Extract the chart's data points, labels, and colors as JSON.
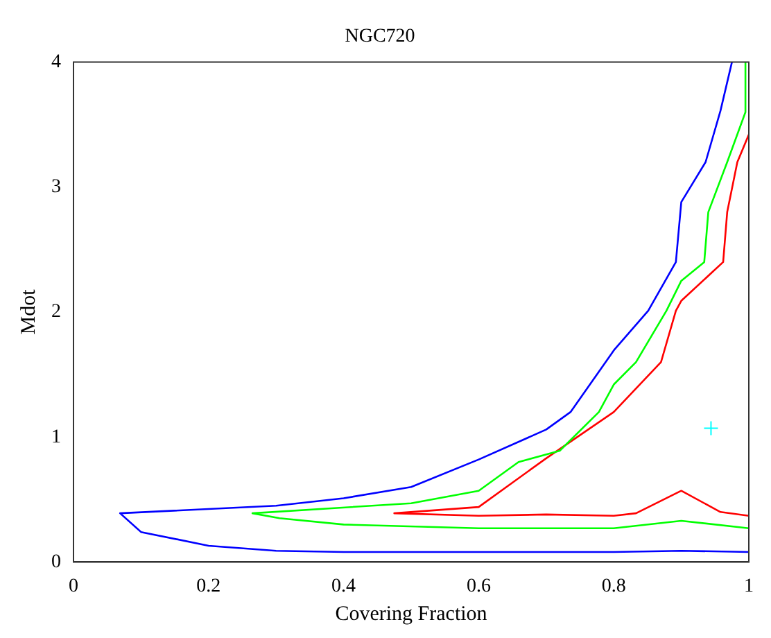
{
  "chart_data": {
    "type": "line",
    "title": "NGC720",
    "xlabel": "Covering Fraction",
    "ylabel": "Mdot",
    "xlim": [
      0,
      1
    ],
    "ylim": [
      0,
      4
    ],
    "xticks": [
      0,
      0.2,
      0.4,
      0.6,
      0.8,
      1
    ],
    "yticks": [
      0,
      1,
      2,
      3,
      4
    ],
    "grid": false,
    "legend": false,
    "series": [
      {
        "color": "#0000ff",
        "x": [
          0.975,
          0.958,
          0.936,
          0.9,
          0.892,
          0.851,
          0.801,
          0.736,
          0.7,
          0.6,
          0.5,
          0.4,
          0.3,
          0.069,
          0.1,
          0.2,
          0.3,
          0.4,
          0.6,
          0.8,
          0.9,
          1.0
        ],
        "values": [
          4.0,
          3.61,
          3.2,
          2.88,
          2.4,
          2.01,
          1.7,
          1.2,
          1.06,
          0.82,
          0.6,
          0.51,
          0.45,
          0.39,
          0.24,
          0.13,
          0.09,
          0.08,
          0.08,
          0.08,
          0.09,
          0.08
        ]
      },
      {
        "color": "#00ff00",
        "x": [
          0.995,
          0.995,
          0.968,
          0.94,
          0.934,
          0.9,
          0.878,
          0.833,
          0.8,
          0.778,
          0.72,
          0.659,
          0.6,
          0.5,
          0.265,
          0.305,
          0.4,
          0.6,
          0.8,
          0.9,
          1.0
        ],
        "values": [
          4.0,
          3.6,
          3.2,
          2.8,
          2.4,
          2.25,
          2.01,
          1.6,
          1.42,
          1.2,
          0.89,
          0.8,
          0.57,
          0.47,
          0.39,
          0.35,
          0.3,
          0.27,
          0.27,
          0.33,
          0.27
        ]
      },
      {
        "color": "#ff0000",
        "x": [
          1.0,
          0.983,
          0.968,
          0.962,
          0.9,
          0.892,
          0.87,
          0.8,
          0.7,
          0.6,
          0.475,
          0.6,
          0.7,
          0.8,
          0.833,
          0.9,
          0.958,
          1.0
        ],
        "values": [
          3.42,
          3.2,
          2.8,
          2.4,
          2.09,
          2.01,
          1.6,
          1.2,
          0.83,
          0.44,
          0.39,
          0.37,
          0.38,
          0.37,
          0.39,
          0.57,
          0.4,
          0.37
        ]
      },
      {
        "type": "scatter",
        "marker": "cross",
        "color": "#00ffff",
        "x": [
          0.944
        ],
        "values": [
          1.07
        ]
      }
    ]
  }
}
